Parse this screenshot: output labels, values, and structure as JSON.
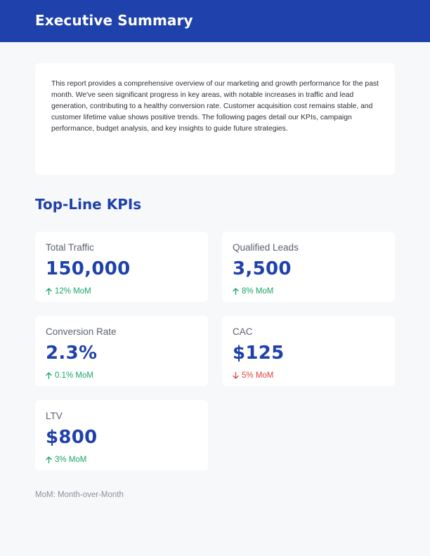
{
  "header": {
    "title": "Executive Summary",
    "background_color": "#1f41ab"
  },
  "summary": {
    "text": "This report provides a comprehensive overview of our marketing and growth performance for the past month. We've seen significant progress in key areas, with notable increases in traffic and lead generation, contributing to a healthy conversion rate. Customer acquisition cost remains stable, and customer lifetime value shows positive trends. The following pages detail our KPIs, campaign performance, budget analysis, and key insights to guide future strategies."
  },
  "kpi_section": {
    "title": "Top-Line KPIs",
    "cards": [
      {
        "label": "Total Traffic",
        "value": "150,000",
        "change": "12% MoM",
        "direction": "up",
        "icon": "arrow-up-icon"
      },
      {
        "label": "Qualified Leads",
        "value": "3,500",
        "change": "8% MoM",
        "direction": "up",
        "icon": "arrow-up-icon"
      },
      {
        "label": "Conversion Rate",
        "value": "2.3%",
        "change": "0.1% MoM",
        "direction": "up",
        "icon": "arrow-up-icon"
      },
      {
        "label": "CAC",
        "value": "$125",
        "change": "5% MoM",
        "direction": "down",
        "icon": "arrow-down-icon"
      },
      {
        "label": "LTV",
        "value": "$800",
        "change": "3% MoM",
        "direction": "up",
        "icon": "arrow-up-icon"
      }
    ]
  },
  "footnote": "MoM: Month-over-Month",
  "colors": {
    "accent": "#1f41ab",
    "positive": "#17a863",
    "negative": "#e0433f"
  }
}
